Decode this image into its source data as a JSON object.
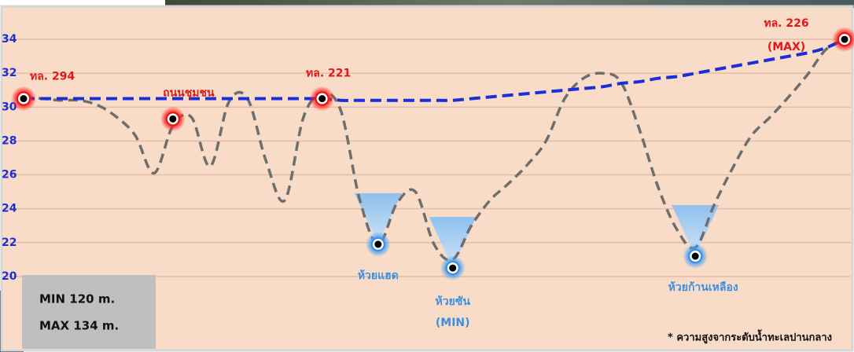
{
  "chart_data": {
    "type": "line",
    "categories": [
      null,
      null,
      null,
      null,
      null,
      null,
      null,
      null,
      null,
      null,
      null,
      null,
      null,
      null,
      null,
      null,
      null,
      null,
      null,
      null,
      null,
      null,
      null,
      null,
      null,
      null,
      null,
      null,
      null,
      null,
      null,
      null,
      null,
      null,
      null,
      null,
      null,
      null,
      null,
      null,
      null,
      null,
      null,
      null,
      null
    ],
    "ylim": [
      18,
      36
    ],
    "yticks": [
      20,
      22,
      24,
      26,
      28,
      30,
      32,
      34
    ],
    "grid": true,
    "series": [
      {
        "color": "#6e6e6e",
        "values": [
          30.6,
          30.5,
          30.4,
          30.4,
          30.1,
          29.4,
          28.3,
          26.1,
          28.9,
          29.4,
          26.5,
          30.3,
          30.5,
          26.8,
          24.5,
          29.4,
          30.8,
          29.8,
          24.6,
          21.9,
          24.3,
          25.0,
          21.9,
          21.0,
          23.0,
          24.5,
          25.5,
          26.6,
          28.0,
          30.5,
          31.7,
          32.0,
          31.5,
          28.7,
          25.3,
          22.8,
          21.7,
          24.2,
          26.4,
          28.3,
          29.4,
          30.6,
          31.9,
          33.4,
          34.0
        ]
      },
      {
        "color": "#1a2fd6",
        "values": [
          30.5,
          30.5,
          30.5,
          30.5,
          30.5,
          30.5,
          30.5,
          30.5,
          30.5,
          30.5,
          30.5,
          30.5,
          30.5,
          30.5,
          30.5,
          30.5,
          30.5,
          30.4,
          30.4,
          30.4,
          30.4,
          30.4,
          30.4,
          30.4,
          30.5,
          30.6,
          30.7,
          30.8,
          30.9,
          31.0,
          31.1,
          31.2,
          31.4,
          31.5,
          31.7,
          31.8,
          32.0,
          32.2,
          32.4,
          32.6,
          32.8,
          33.0,
          33.2,
          33.5,
          34.0
        ]
      }
    ],
    "markers": [
      {
        "color": "#e01818",
        "values": [
          30.5,
          null,
          null,
          null,
          null,
          null,
          null,
          null,
          29.3,
          null,
          null,
          null,
          null,
          null,
          null,
          null,
          30.5,
          null,
          null,
          null,
          null,
          null,
          null,
          null,
          null,
          null,
          null,
          null,
          null,
          null,
          null,
          null,
          null,
          null,
          null,
          null,
          null,
          null,
          null,
          null,
          null,
          null,
          null,
          null,
          34.0
        ],
        "labels": [
          "ทล. 294",
          null,
          null,
          null,
          null,
          null,
          null,
          null,
          "ถนนชุมชน",
          null,
          null,
          null,
          null,
          null,
          null,
          null,
          "ทล. 221",
          null,
          null,
          null,
          null,
          null,
          null,
          null,
          null,
          null,
          null,
          null,
          null,
          null,
          null,
          null,
          null,
          null,
          null,
          null,
          null,
          null,
          null,
          null,
          null,
          null,
          null,
          null,
          "ทล. 226"
        ]
      },
      {
        "color": "#3b8fe0",
        "values": [
          null,
          null,
          null,
          null,
          null,
          null,
          null,
          null,
          null,
          null,
          null,
          null,
          null,
          null,
          null,
          null,
          null,
          null,
          null,
          21.9,
          null,
          null,
          null,
          20.5,
          null,
          null,
          null,
          null,
          null,
          null,
          null,
          null,
          null,
          null,
          null,
          null,
          21.2,
          null,
          null,
          null,
          null,
          null,
          null,
          null,
          null
        ],
        "labels": [
          null,
          null,
          null,
          null,
          null,
          null,
          null,
          null,
          null,
          null,
          null,
          null,
          null,
          null,
          null,
          null,
          null,
          null,
          null,
          "ห้วยแฮด",
          null,
          null,
          null,
          "ห้วยซัน",
          null,
          null,
          null,
          null,
          null,
          null,
          null,
          null,
          null,
          null,
          null,
          null,
          "ห้วยก้านเหลือง",
          null,
          null,
          null,
          null,
          null,
          null,
          null,
          null
        ]
      }
    ],
    "max_note": "(MAX)",
    "min_note": "(MIN)",
    "summary": [
      "MIN  120 m.",
      "MAX 134 m."
    ],
    "footnote": "* ความสูงจากระดับน้ำทะเลปานกลาง"
  }
}
